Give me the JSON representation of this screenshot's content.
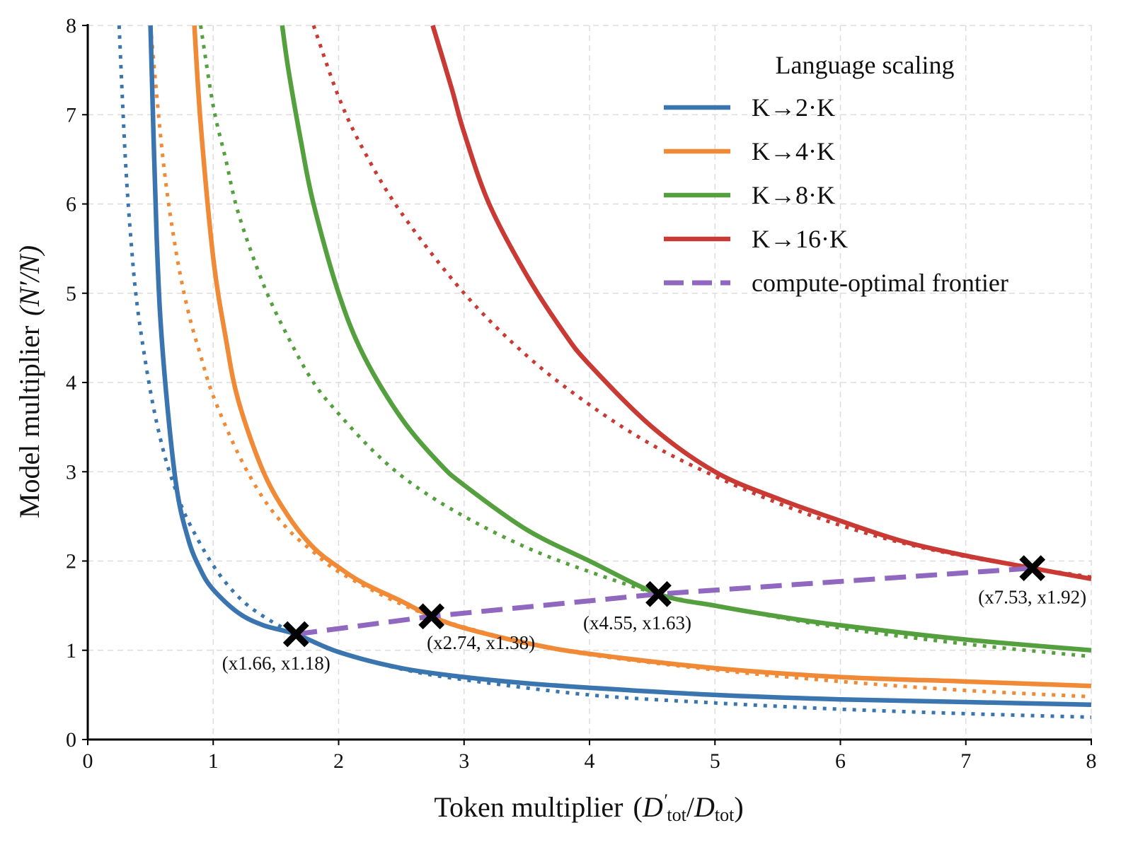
{
  "chart_data": {
    "type": "line",
    "title": "",
    "xlabel": "Token multiplier",
    "xlabel_math": {
      "base": "D",
      "prime": "′",
      "sub": "tot",
      "sep": "/",
      "base2": "D",
      "sub2": "tot"
    },
    "ylabel": "Model multiplier",
    "ylabel_math": "(N′/N)",
    "xlim": [
      0,
      8
    ],
    "ylim": [
      0,
      8
    ],
    "x_ticks": [
      0,
      1,
      2,
      3,
      4,
      5,
      6,
      7,
      8
    ],
    "y_ticks": [
      0,
      1,
      2,
      3,
      4,
      5,
      6,
      7,
      8
    ],
    "x_tick_labels": [
      "0",
      "1",
      "2",
      "3",
      "4",
      "5",
      "6",
      "7",
      "8"
    ],
    "y_tick_labels": [
      "0",
      "1",
      "2",
      "3",
      "4",
      "5",
      "6",
      "7",
      "8"
    ],
    "grid": true,
    "legend_title": "Language scaling",
    "legend_position": "top-right",
    "series": [
      {
        "name": "K→2·K",
        "color": "#3a75b0",
        "style": "solid",
        "x": [
          0.5,
          0.55,
          0.6,
          0.7,
          0.8,
          0.9,
          1.0,
          1.2,
          1.4,
          1.66,
          2.0,
          2.5,
          3.0,
          3.5,
          4.0,
          5.0,
          6.0,
          7.0,
          8.0
        ],
        "y": [
          8.0,
          5.6,
          4.3,
          2.9,
          2.25,
          1.9,
          1.68,
          1.42,
          1.28,
          1.18,
          0.98,
          0.8,
          0.7,
          0.63,
          0.58,
          0.5,
          0.45,
          0.42,
          0.39
        ]
      },
      {
        "name": "K→2·K (dotted)",
        "color": "#3a75b0",
        "style": "dotted",
        "x": [
          0.25,
          0.3,
          0.35,
          0.4,
          0.5,
          0.6,
          0.7,
          0.8,
          1.0,
          1.2,
          1.4,
          1.66,
          2.0,
          2.5,
          3.0,
          4.0,
          5.0,
          6.0,
          7.0,
          8.0
        ],
        "y": [
          8.0,
          6.5,
          5.5,
          4.8,
          3.9,
          3.25,
          2.8,
          2.45,
          1.95,
          1.6,
          1.38,
          1.18,
          0.98,
          0.79,
          0.67,
          0.5,
          0.41,
          0.34,
          0.29,
          0.25
        ]
      },
      {
        "name": "K→4·K",
        "color": "#f08a36",
        "style": "solid",
        "x": [
          0.85,
          0.9,
          1.0,
          1.1,
          1.2,
          1.4,
          1.6,
          1.8,
          2.0,
          2.2,
          2.5,
          2.74,
          3.0,
          3.5,
          4.0,
          5.0,
          6.0,
          7.0,
          8.0
        ],
        "y": [
          8.0,
          6.9,
          5.4,
          4.5,
          3.8,
          3.0,
          2.5,
          2.15,
          1.93,
          1.75,
          1.55,
          1.38,
          1.25,
          1.08,
          0.96,
          0.8,
          0.7,
          0.65,
          0.6
        ]
      },
      {
        "name": "K→4·K (dotted)",
        "color": "#f08a36",
        "style": "dotted",
        "x": [
          0.5,
          0.6,
          0.7,
          0.8,
          0.9,
          1.0,
          1.2,
          1.4,
          1.6,
          1.8,
          2.0,
          2.4,
          2.74,
          3.0,
          3.5,
          4.0,
          5.0,
          6.0,
          7.0,
          8.0
        ],
        "y": [
          8.0,
          6.5,
          5.5,
          4.8,
          4.3,
          3.85,
          3.2,
          2.7,
          2.35,
          2.1,
          1.88,
          1.58,
          1.38,
          1.26,
          1.08,
          0.95,
          0.78,
          0.65,
          0.55,
          0.48
        ]
      },
      {
        "name": "K→8·K",
        "color": "#55a03e",
        "style": "solid",
        "x": [
          1.55,
          1.6,
          1.7,
          1.8,
          2.0,
          2.2,
          2.5,
          2.8,
          3.0,
          3.5,
          4.0,
          4.55,
          5.0,
          5.5,
          6.0,
          7.0,
          8.0
        ],
        "y": [
          8.0,
          7.5,
          6.7,
          6.0,
          5.0,
          4.3,
          3.6,
          3.1,
          2.85,
          2.35,
          2.0,
          1.63,
          1.5,
          1.38,
          1.28,
          1.12,
          1.0
        ]
      },
      {
        "name": "K→8·K (dotted)",
        "color": "#55a03e",
        "style": "dotted",
        "x": [
          0.9,
          1.0,
          1.1,
          1.2,
          1.4,
          1.6,
          1.8,
          2.0,
          2.3,
          2.6,
          3.0,
          3.5,
          4.0,
          4.55,
          5.0,
          6.0,
          7.0,
          8.0
        ],
        "y": [
          8.0,
          7.1,
          6.5,
          5.9,
          5.1,
          4.5,
          4.0,
          3.65,
          3.2,
          2.85,
          2.5,
          2.15,
          1.88,
          1.63,
          1.5,
          1.25,
          1.07,
          0.93
        ]
      },
      {
        "name": "K→16·K",
        "color": "#c83a33",
        "style": "solid",
        "x": [
          2.75,
          2.9,
          3.0,
          3.2,
          3.5,
          3.8,
          4.0,
          4.5,
          5.0,
          5.5,
          6.0,
          6.5,
          7.0,
          7.53,
          8.0
        ],
        "y": [
          8.0,
          7.3,
          6.8,
          6.0,
          5.2,
          4.55,
          4.2,
          3.5,
          3.0,
          2.7,
          2.45,
          2.22,
          2.06,
          1.92,
          1.8
        ]
      },
      {
        "name": "K→16·K (dotted)",
        "color": "#c83a33",
        "style": "dotted",
        "x": [
          1.8,
          2.0,
          2.2,
          2.5,
          3.0,
          3.5,
          4.0,
          4.5,
          5.0,
          5.5,
          6.0,
          6.5,
          7.0,
          7.53,
          8.0
        ],
        "y": [
          8.0,
          7.2,
          6.6,
          5.9,
          5.0,
          4.3,
          3.75,
          3.3,
          2.95,
          2.65,
          2.4,
          2.2,
          2.05,
          1.92,
          1.82
        ]
      },
      {
        "name": "compute-optimal frontier",
        "color": "#9068c0",
        "style": "dashed",
        "x": [
          1.66,
          2.74,
          4.55,
          7.53
        ],
        "y": [
          1.18,
          1.38,
          1.63,
          1.92
        ]
      }
    ],
    "legend": [
      {
        "label": "K→2·K",
        "color": "#3a75b0",
        "style": "solid"
      },
      {
        "label": "K→4·K",
        "color": "#f08a36",
        "style": "solid"
      },
      {
        "label": "K→8·K",
        "color": "#55a03e",
        "style": "solid"
      },
      {
        "label": "K→16·K",
        "color": "#c83a33",
        "style": "solid"
      },
      {
        "label": "compute-optimal frontier",
        "color": "#9068c0",
        "style": "dashed"
      }
    ],
    "markers": [
      {
        "x": 1.66,
        "y": 1.18,
        "label": "(x1.66, x1.18)",
        "label_side": "below"
      },
      {
        "x": 2.74,
        "y": 1.38,
        "label": "(x2.74, x1.38)",
        "label_side": "below"
      },
      {
        "x": 4.55,
        "y": 1.63,
        "label": "(x4.55, x1.63)",
        "label_side": "below"
      },
      {
        "x": 7.53,
        "y": 1.92,
        "label": "(x7.53, x1.92)",
        "label_side": "below"
      }
    ]
  }
}
